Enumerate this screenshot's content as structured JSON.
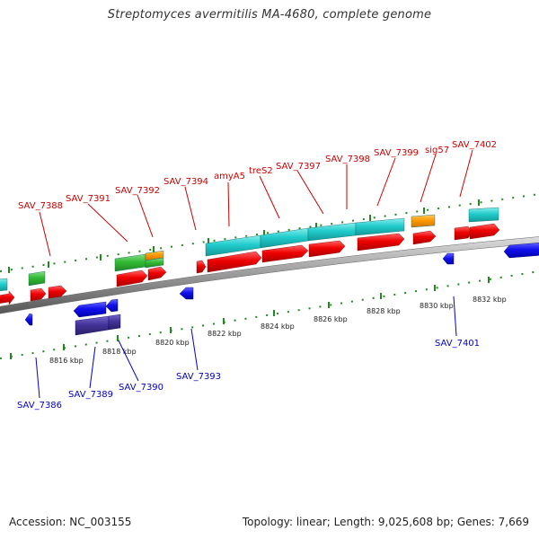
{
  "title": "Streptomyces avermitilis MA-4680, complete genome",
  "footer": {
    "accession": "Accession: NC_003155",
    "topology": "Topology: linear; Length: 9,025,608 bp; Genes: 7,669"
  },
  "colors": {
    "forward_label": "#cc0000",
    "reverse_label": "#0000cc",
    "red_gene": "#ee0000",
    "cyan_gene": "#22cccc",
    "green_gene": "#33bb33",
    "orange_gene": "#ff9900",
    "blue_gene": "#1111ee",
    "purple_gene": "#443399",
    "tick": "#228822",
    "backbone": "#888888"
  },
  "scale_labels": [
    "8816 kbp",
    "8818 kbp",
    "8820 kbp",
    "8822 kbp",
    "8824 kbp",
    "8826 kbp",
    "8828 kbp",
    "8830 kbp",
    "8832 kbp"
  ],
  "forward_labels": [
    "SAV_7388",
    "SAV_7391",
    "SAV_7392",
    "SAV_7394",
    "amyA5",
    "treS2",
    "SAV_7397",
    "SAV_7398",
    "SAV_7399",
    "sig57",
    "SAV_7402"
  ],
  "reverse_labels": [
    "SAV_7386",
    "SAV_7389",
    "SAV_7390",
    "SAV_7393",
    "SAV_7401"
  ]
}
